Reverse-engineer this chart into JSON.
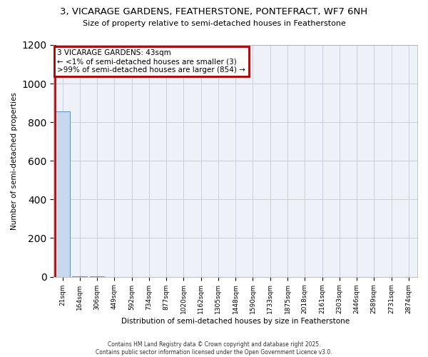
{
  "title": "3, VICARAGE GARDENS, FEATHERSTONE, PONTEFRACT, WF7 6NH",
  "subtitle": "Size of property relative to semi-detached houses in Featherstone",
  "xlabel": "Distribution of semi-detached houses by size in Featherstone",
  "ylabel": "Number of semi-detached properties",
  "bar_labels": [
    "21sqm",
    "164sqm",
    "306sqm",
    "449sqm",
    "592sqm",
    "734sqm",
    "877sqm",
    "1020sqm",
    "1162sqm",
    "1305sqm",
    "1448sqm",
    "1590sqm",
    "1733sqm",
    "1875sqm",
    "2018sqm",
    "2161sqm",
    "2303sqm",
    "2446sqm",
    "2589sqm",
    "2731sqm",
    "2874sqm"
  ],
  "bar_values": [
    857,
    2,
    1,
    0,
    0,
    0,
    0,
    0,
    0,
    0,
    0,
    0,
    0,
    0,
    0,
    0,
    0,
    0,
    0,
    0,
    0
  ],
  "bar_color": "#c8d8ee",
  "bar_edge_color": "#6699bb",
  "ylim": [
    0,
    1200
  ],
  "yticks": [
    0,
    200,
    400,
    600,
    800,
    1000,
    1200
  ],
  "annotation_text": "3 VICARAGE GARDENS: 43sqm\n← <1% of semi-detached houses are smaller (3)\n>99% of semi-detached houses are larger (854) →",
  "annotation_box_color": "#ffffff",
  "annotation_box_edge": "#aa0000",
  "footer": "Contains HM Land Registry data © Crown copyright and database right 2025.\nContains public sector information licensed under the Open Government Licence v3.0.",
  "bg_color": "#ffffff",
  "plot_bg_color": "#eef2f8",
  "grid_color": "#ccccdd",
  "red_line_color": "#aa0000"
}
